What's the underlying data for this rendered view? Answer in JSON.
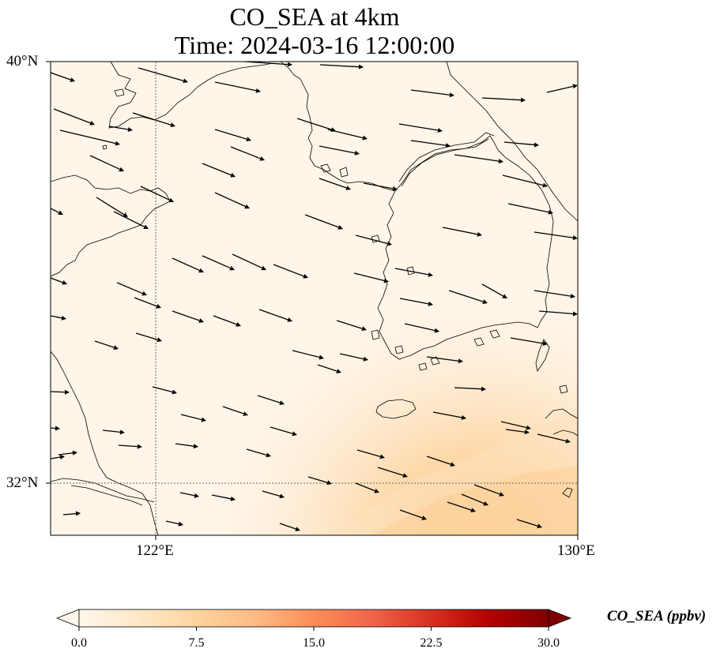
{
  "title": {
    "line1": "CO_SEA at 4km",
    "line2": "Time: 2024-03-16 12:00:00"
  },
  "axes": {
    "lon_ticks": [
      {
        "value": 122,
        "label": "122°E"
      },
      {
        "value": 130,
        "label": "130°E"
      }
    ],
    "lat_ticks": [
      {
        "value": 40,
        "label": "40°N"
      },
      {
        "value": 32,
        "label": "32°N"
      }
    ],
    "lon_range": [
      120,
      130
    ],
    "lat_range": [
      31,
      40
    ],
    "gridlines": "dotted"
  },
  "field": {
    "variable": "CO_SEA",
    "colormap": "OrRd",
    "background_color": "#fff5e8",
    "plume_color": "#fdc88a",
    "max_value_region": "bottom-right"
  },
  "colorbar": {
    "label": "CO_SEA (ppbv)",
    "ticks": [
      "0.0",
      "7.5",
      "15.0",
      "22.5",
      "30.0"
    ],
    "min": 0.0,
    "max": 30.0,
    "extend": "both",
    "colors": [
      "#fff7ec",
      "#fee8c8",
      "#fdd49e",
      "#fdbb84",
      "#fc8d59",
      "#ef6548",
      "#d7301f",
      "#b30000",
      "#7f0000"
    ]
  },
  "wind_vectors": "arrows pointing east-southeast",
  "coastlines": "black"
}
